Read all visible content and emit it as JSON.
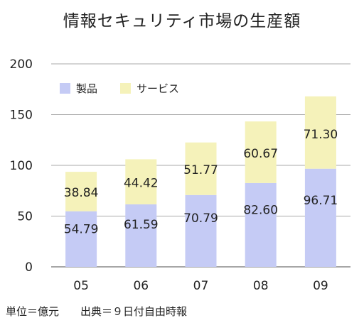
{
  "chart_data": {
    "type": "bar",
    "stacked": true,
    "title": "情報セキュリティ市場の生産額",
    "categories": [
      "05",
      "06",
      "07",
      "08",
      "09"
    ],
    "series": [
      {
        "name": "製品",
        "color": "#c5cbf5",
        "values": [
          54.79,
          61.59,
          70.79,
          82.6,
          96.71
        ],
        "labels": [
          "54.79",
          "61.59",
          "70.79",
          "82.60",
          "96.71"
        ]
      },
      {
        "name": "サービス",
        "color": "#f5f2ba",
        "values": [
          38.84,
          44.42,
          51.77,
          60.67,
          71.3
        ],
        "labels": [
          "38.84",
          "44.42",
          "51.77",
          "60.67",
          "71.30"
        ]
      }
    ],
    "ylim": [
      0,
      200
    ],
    "yticks": [
      "0",
      "50",
      "100",
      "150",
      "200"
    ],
    "grid": true,
    "legend_position": "top-left"
  },
  "footnote": "単位＝億元　　出典＝９日付自由時報"
}
